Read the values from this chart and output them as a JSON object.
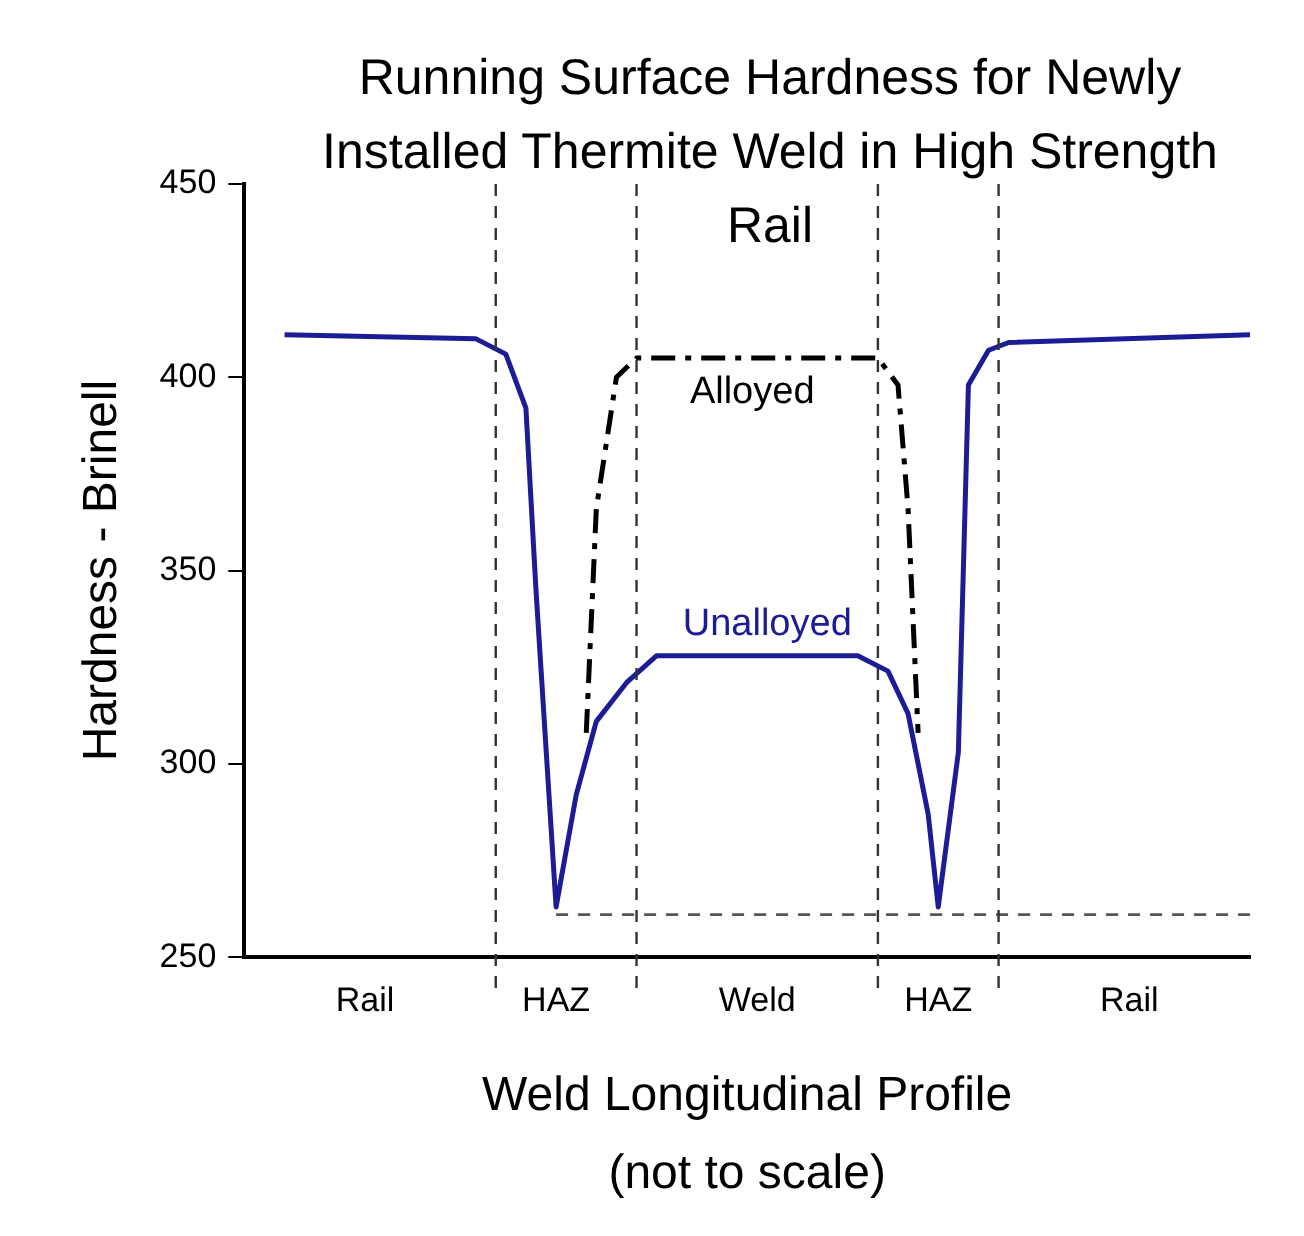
{
  "chart_data": {
    "type": "line",
    "title": "Running Surface Hardness for Newly Installed Thermite Weld in High Strength Rail",
    "xlabel": "Weld Longitudinal Profile",
    "ylabel": "Hardness - Brinell",
    "annotations": [
      "(not to scale)"
    ],
    "categories": [
      null,
      null,
      null,
      null,
      null,
      null,
      null,
      null,
      null,
      null,
      null,
      null,
      "Rail",
      null,
      null,
      null,
      null,
      null,
      null,
      null,
      null,
      null,
      null,
      null,
      null,
      null,
      null,
      null,
      null,
      null,
      null,
      "HAZ",
      null,
      null,
      null,
      null,
      null,
      null,
      null,
      null,
      null,
      null,
      null,
      null,
      null,
      null,
      null,
      null,
      null,
      null,
      null,
      "Weld",
      null,
      null,
      null,
      null,
      null,
      null,
      null,
      null,
      null,
      null,
      null,
      null,
      null,
      null,
      null,
      null,
      null,
      "HAZ",
      null,
      null,
      null,
      null,
      null,
      null,
      null,
      null,
      null,
      null,
      null,
      null,
      null,
      null,
      null,
      null,
      null,
      null,
      "Rail",
      null,
      null,
      null,
      null,
      null,
      null,
      null,
      null,
      null,
      null,
      null,
      null
    ],
    "ylim": [
      250,
      450
    ],
    "yticks": [
      250,
      300,
      350,
      400,
      450
    ],
    "grid": false,
    "legend": false,
    "marker": "none",
    "series": [
      {
        "name": "Unalloyed",
        "color": "#1c1c96",
        "line_style": "solid",
        "values": [
          null,
          null,
          null,
          null,
          411,
          null,
          null,
          null,
          null,
          null,
          null,
          null,
          null,
          null,
          null,
          null,
          null,
          null,
          null,
          null,
          null,
          null,
          null,
          410,
          null,
          null,
          406,
          null,
          392,
          345,
          null,
          263,
          null,
          292,
          null,
          311,
          null,
          null,
          321,
          null,
          null,
          328,
          null,
          null,
          null,
          null,
          null,
          null,
          null,
          null,
          null,
          null,
          null,
          null,
          null,
          null,
          null,
          null,
          null,
          null,
          null,
          328,
          null,
          null,
          324,
          null,
          313,
          null,
          287,
          263,
          null,
          303,
          398,
          null,
          407,
          null,
          409,
          null,
          null,
          null,
          null,
          null,
          null,
          null,
          null,
          null,
          null,
          null,
          null,
          null,
          null,
          null,
          null,
          null,
          null,
          null,
          null,
          null,
          null,
          null,
          411
        ]
      },
      {
        "name": "Alloyed",
        "color": "#000000",
        "line_style": "dashed",
        "values": [
          null,
          null,
          null,
          null,
          null,
          null,
          null,
          null,
          null,
          null,
          null,
          null,
          null,
          null,
          null,
          null,
          null,
          null,
          null,
          null,
          null,
          null,
          null,
          null,
          null,
          null,
          null,
          null,
          null,
          null,
          null,
          null,
          null,
          null,
          308,
          366,
          null,
          400,
          null,
          405,
          null,
          null,
          null,
          null,
          null,
          null,
          null,
          null,
          null,
          null,
          null,
          null,
          null,
          null,
          null,
          null,
          null,
          null,
          null,
          null,
          null,
          null,
          null,
          405,
          null,
          398,
          366,
          308,
          null,
          null,
          null,
          null,
          null,
          null,
          null,
          null,
          null,
          null,
          null,
          null,
          null,
          null,
          null,
          null,
          null,
          null,
          null,
          null,
          null,
          null,
          null,
          null,
          null,
          null,
          null,
          null,
          null,
          null,
          null,
          null,
          null
        ]
      },
      {
        "color": "#555555",
        "line_style": "dotted",
        "values": [
          null,
          null,
          null,
          null,
          null,
          null,
          null,
          null,
          null,
          null,
          null,
          null,
          null,
          null,
          null,
          null,
          null,
          null,
          null,
          null,
          null,
          null,
          null,
          null,
          null,
          null,
          null,
          null,
          null,
          null,
          null,
          261,
          null,
          null,
          null,
          null,
          null,
          null,
          null,
          null,
          null,
          null,
          null,
          null,
          null,
          null,
          null,
          null,
          null,
          null,
          null,
          null,
          null,
          null,
          null,
          null,
          null,
          null,
          null,
          null,
          null,
          null,
          null,
          null,
          null,
          null,
          null,
          null,
          null,
          null,
          null,
          null,
          null,
          null,
          null,
          null,
          null,
          null,
          null,
          null,
          null,
          null,
          null,
          null,
          null,
          null,
          null,
          null,
          null,
          null,
          null,
          null,
          null,
          null,
          null,
          null,
          null,
          null,
          null,
          null,
          261
        ]
      }
    ]
  }
}
